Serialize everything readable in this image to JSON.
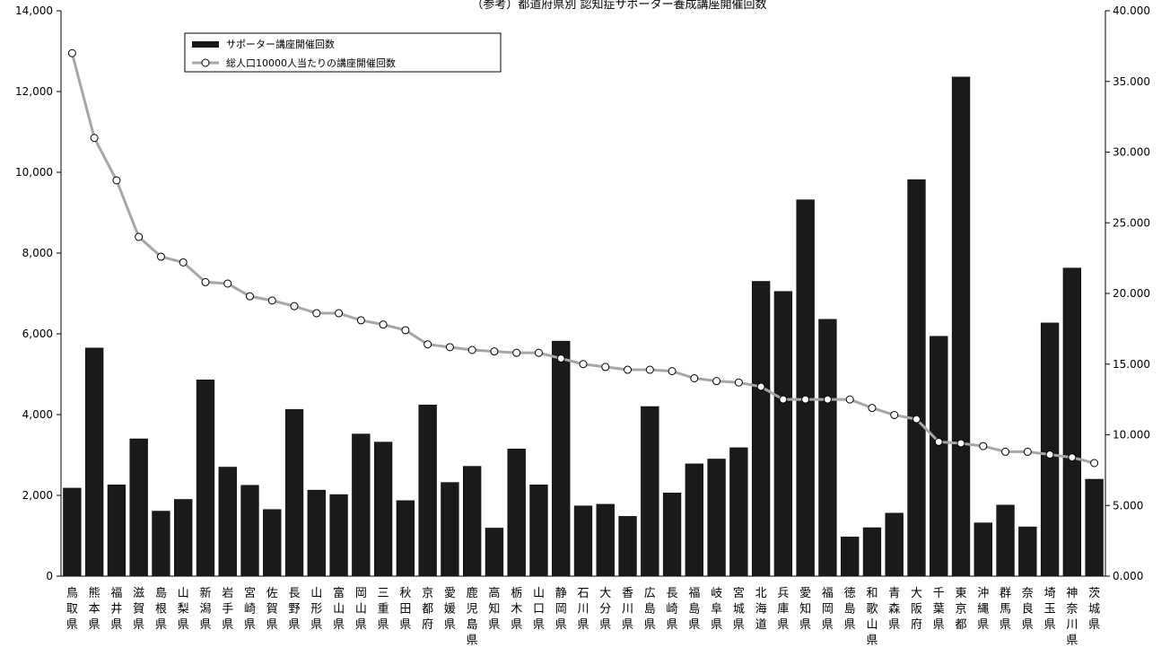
{
  "chart_data": {
    "type": "bar",
    "title": "（参考）都道府県別 認知症サポーター養成講座開催回数",
    "categories": [
      "鳥取県",
      "熊本県",
      "福井県",
      "滋賀県",
      "島根県",
      "山梨県",
      "新潟県",
      "岩手県",
      "宮崎県",
      "佐賀県",
      "長野県",
      "山形県",
      "富山県",
      "岡山県",
      "三重県",
      "秋田県",
      "京都府",
      "愛媛県",
      "鹿児島県",
      "高知県",
      "栃木県",
      "山口県",
      "静岡県",
      "石川県",
      "大分県",
      "香川県",
      "広島県",
      "長崎県",
      "福島県",
      "岐阜県",
      "宮城県",
      "北海道",
      "兵庫県",
      "愛知県",
      "福岡県",
      "徳島県",
      "和歌山県",
      "青森県",
      "大阪府",
      "千葉県",
      "東京都",
      "沖縄県",
      "群馬県",
      "奈良県",
      "埼玉県",
      "神奈川県",
      "茨城県"
    ],
    "series": [
      {
        "name": "サポーター講座開催回数",
        "type": "bar",
        "axis": "left",
        "color": "#1a1a1a",
        "values": [
          2180,
          5650,
          2260,
          3400,
          1610,
          1900,
          4860,
          2700,
          2250,
          1650,
          4130,
          2130,
          2020,
          3520,
          3320,
          1870,
          4240,
          2320,
          2720,
          1190,
          3150,
          2260,
          5820,
          1740,
          1780,
          1480,
          4200,
          2060,
          2780,
          2900,
          3180,
          7300,
          7050,
          9320,
          6360,
          970,
          1200,
          1560,
          9820,
          5940,
          12360,
          1320,
          1760,
          1220,
          6270,
          7630,
          2400
        ]
      },
      {
        "name": "総人口10000人当たりの講座開催回数",
        "type": "line",
        "axis": "right",
        "color": "#a6a6a6",
        "values": [
          37.0,
          31.0,
          28.0,
          24.0,
          22.6,
          22.2,
          20.8,
          20.7,
          19.8,
          19.5,
          19.1,
          18.6,
          18.6,
          18.1,
          17.8,
          17.4,
          16.4,
          16.2,
          16.0,
          15.9,
          15.8,
          15.8,
          15.4,
          15.0,
          14.8,
          14.6,
          14.6,
          14.5,
          14.0,
          13.8,
          13.7,
          13.4,
          12.5,
          12.5,
          12.5,
          12.5,
          11.9,
          11.4,
          11.1,
          9.5,
          9.4,
          9.2,
          8.8,
          8.8,
          8.6,
          8.4,
          8.0
        ]
      }
    ],
    "y_left": {
      "ylim": [
        0,
        14000
      ],
      "ticks": [
        "0",
        "2,000",
        "4,000",
        "6,000",
        "8,000",
        "10,000",
        "12,000",
        "14,000"
      ]
    },
    "y_right": {
      "ylim": [
        0,
        40
      ],
      "ticks": [
        "0.000",
        "5.000",
        "10.000",
        "15.000",
        "20.000",
        "25.000",
        "30.000",
        "35.000",
        "40.000"
      ]
    },
    "grid": false,
    "legend": "top-left",
    "xlabel": "",
    "ylabel": ""
  }
}
